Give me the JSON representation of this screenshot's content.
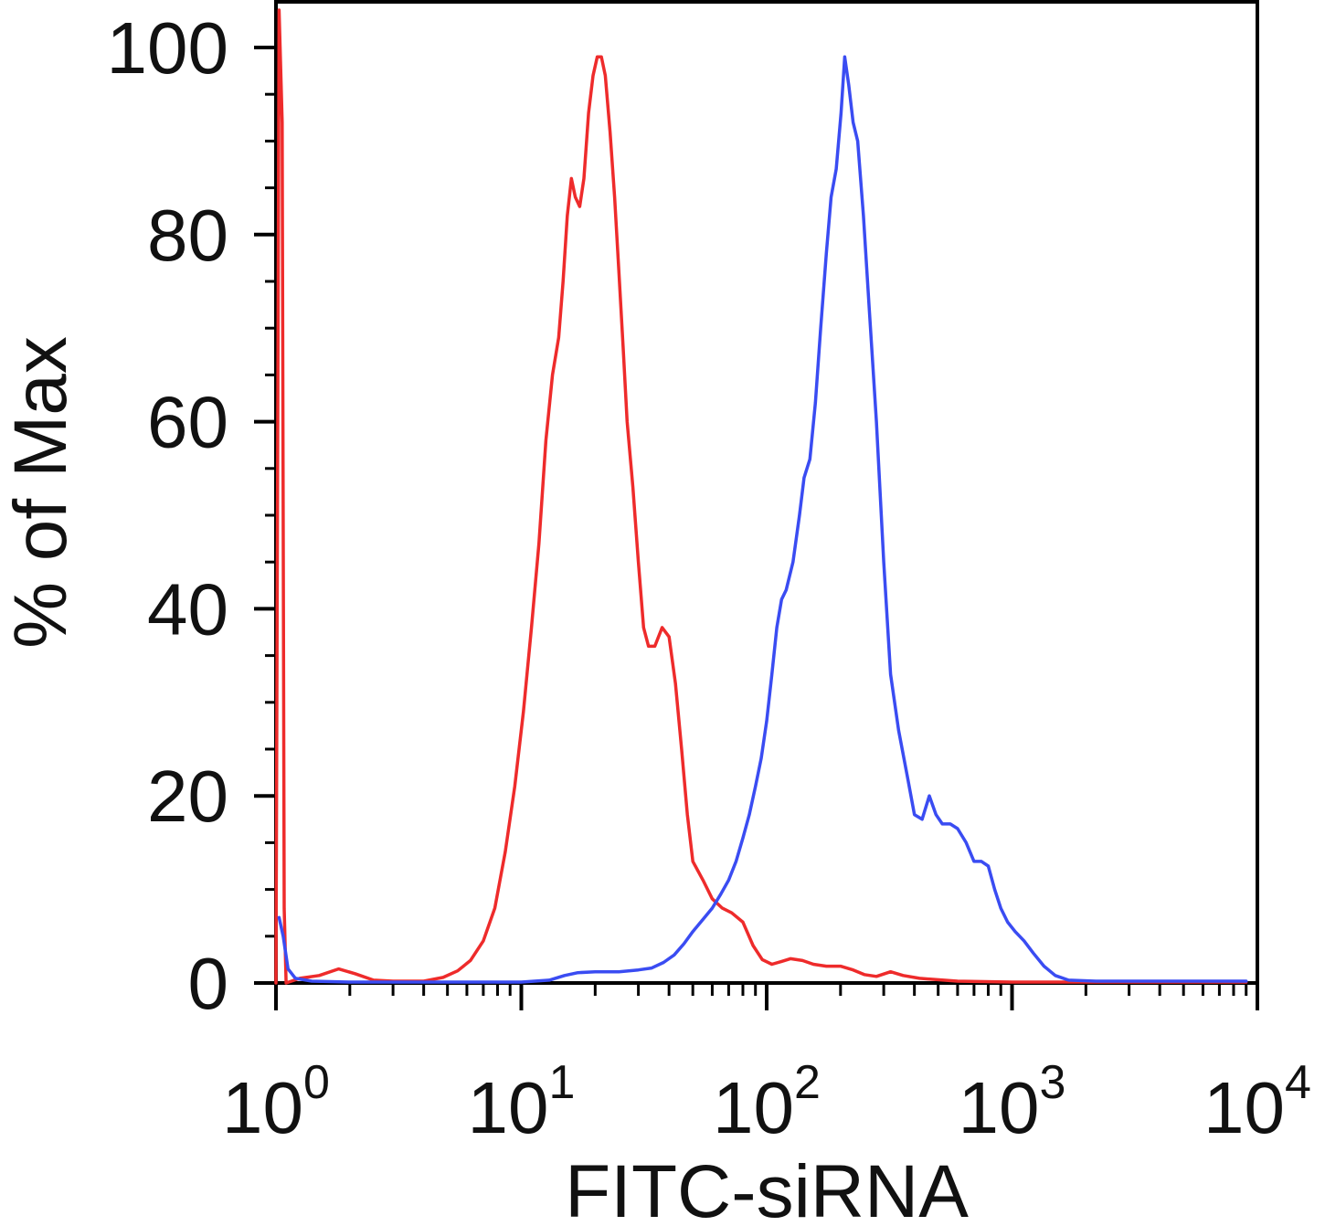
{
  "chart_data": {
    "type": "line",
    "title": "",
    "xlabel": "FITC-siRNA",
    "ylabel": "% of Max",
    "xscale": "log",
    "xlim": [
      1,
      10000
    ],
    "ylim": [
      0,
      100
    ],
    "grid": false,
    "legend": "none",
    "x_ticks": [
      {
        "value": 1,
        "base": "10",
        "exp": "0"
      },
      {
        "value": 10,
        "base": "10",
        "exp": "1"
      },
      {
        "value": 100,
        "base": "10",
        "exp": "2"
      },
      {
        "value": 1000,
        "base": "10",
        "exp": "3"
      },
      {
        "value": 10000,
        "base": "10",
        "exp": "4"
      }
    ],
    "y_ticks": [
      0,
      20,
      40,
      60,
      80,
      100
    ],
    "series": [
      {
        "color": "#ee2b2b",
        "points": [
          [
            1.0,
            0
          ],
          [
            1.03,
            104
          ],
          [
            1.06,
            92
          ],
          [
            1.08,
            8
          ],
          [
            1.1,
            0
          ],
          [
            1.25,
            0.5
          ],
          [
            1.5,
            0.8
          ],
          [
            1.8,
            1.5
          ],
          [
            2.1,
            1.0
          ],
          [
            2.5,
            0.3
          ],
          [
            3.0,
            0.2
          ],
          [
            4.0,
            0.2
          ],
          [
            4.8,
            0.6
          ],
          [
            5.5,
            1.3
          ],
          [
            6.2,
            2.4
          ],
          [
            7.0,
            4.5
          ],
          [
            7.8,
            8
          ],
          [
            8.6,
            14
          ],
          [
            9.4,
            21
          ],
          [
            10.2,
            29
          ],
          [
            11.0,
            38
          ],
          [
            11.8,
            47
          ],
          [
            12.6,
            58
          ],
          [
            13.4,
            65
          ],
          [
            14.2,
            69
          ],
          [
            14.8,
            75
          ],
          [
            15.4,
            82
          ],
          [
            16.0,
            86
          ],
          [
            16.6,
            84
          ],
          [
            17.3,
            83
          ],
          [
            18.0,
            86
          ],
          [
            18.8,
            93
          ],
          [
            19.6,
            97
          ],
          [
            20.4,
            99
          ],
          [
            21.2,
            99
          ],
          [
            22.0,
            97
          ],
          [
            23.0,
            91
          ],
          [
            24.0,
            84
          ],
          [
            25.0,
            76
          ],
          [
            26.0,
            68
          ],
          [
            27.0,
            60
          ],
          [
            28.5,
            53
          ],
          [
            30.0,
            45
          ],
          [
            31.5,
            38
          ],
          [
            33.0,
            36
          ],
          [
            35.0,
            36
          ],
          [
            37.5,
            38
          ],
          [
            40.0,
            37
          ],
          [
            42.5,
            32
          ],
          [
            45.0,
            25
          ],
          [
            47.5,
            18
          ],
          [
            50.0,
            13
          ],
          [
            55.0,
            11
          ],
          [
            60.0,
            9
          ],
          [
            66.0,
            8
          ],
          [
            72.0,
            7.5
          ],
          [
            80.0,
            6.5
          ],
          [
            88.0,
            4
          ],
          [
            96.0,
            2.5
          ],
          [
            105.0,
            2.0
          ],
          [
            115.0,
            2.3
          ],
          [
            125.0,
            2.6
          ],
          [
            140.0,
            2.4
          ],
          [
            155.0,
            2.0
          ],
          [
            175.0,
            1.8
          ],
          [
            200.0,
            1.8
          ],
          [
            225.0,
            1.4
          ],
          [
            250.0,
            0.9
          ],
          [
            280.0,
            0.7
          ],
          [
            320.0,
            1.2
          ],
          [
            360.0,
            0.8
          ],
          [
            420.0,
            0.5
          ],
          [
            600.0,
            0.2
          ],
          [
            1000.0,
            0.1
          ],
          [
            2000.0,
            0.1
          ],
          [
            9000.0,
            0.1
          ]
        ]
      },
      {
        "color": "#3a4cf2",
        "points": [
          [
            1.03,
            7
          ],
          [
            1.07,
            5
          ],
          [
            1.12,
            1.5
          ],
          [
            1.2,
            0.5
          ],
          [
            1.4,
            0.2
          ],
          [
            2.0,
            0.1
          ],
          [
            5.0,
            0.1
          ],
          [
            10.0,
            0.1
          ],
          [
            13.0,
            0.3
          ],
          [
            15.0,
            0.8
          ],
          [
            17.0,
            1.1
          ],
          [
            20.0,
            1.2
          ],
          [
            25.0,
            1.2
          ],
          [
            30.0,
            1.4
          ],
          [
            34.0,
            1.6
          ],
          [
            38.0,
            2.2
          ],
          [
            42.0,
            3.0
          ],
          [
            46.0,
            4.2
          ],
          [
            50.0,
            5.5
          ],
          [
            55.0,
            6.8
          ],
          [
            60.0,
            8.0
          ],
          [
            65.0,
            9.5
          ],
          [
            70.0,
            11
          ],
          [
            75.0,
            13
          ],
          [
            80.0,
            15.5
          ],
          [
            85.0,
            18
          ],
          [
            90.0,
            21
          ],
          [
            95.0,
            24
          ],
          [
            100.0,
            28
          ],
          [
            105.0,
            33
          ],
          [
            110.0,
            38
          ],
          [
            115.0,
            41
          ],
          [
            120.0,
            42
          ],
          [
            128.0,
            45
          ],
          [
            136.0,
            50
          ],
          [
            142.0,
            54
          ],
          [
            150.0,
            56
          ],
          [
            158.0,
            62
          ],
          [
            166.0,
            70
          ],
          [
            175.0,
            78
          ],
          [
            183.0,
            84
          ],
          [
            192.0,
            87
          ],
          [
            201.0,
            93
          ],
          [
            208.0,
            99
          ],
          [
            216.0,
            96
          ],
          [
            225.0,
            92
          ],
          [
            235.0,
            90
          ],
          [
            248.0,
            82
          ],
          [
            262.0,
            72
          ],
          [
            280.0,
            60
          ],
          [
            300.0,
            45
          ],
          [
            320.0,
            33
          ],
          [
            345.0,
            27
          ],
          [
            375.0,
            22
          ],
          [
            400.0,
            18
          ],
          [
            430.0,
            17.5
          ],
          [
            460.0,
            20
          ],
          [
            490.0,
            18
          ],
          [
            520.0,
            17
          ],
          [
            560.0,
            17
          ],
          [
            600.0,
            16.5
          ],
          [
            650.0,
            15
          ],
          [
            700.0,
            13
          ],
          [
            750.0,
            13
          ],
          [
            800.0,
            12.5
          ],
          [
            850.0,
            10
          ],
          [
            900.0,
            8
          ],
          [
            960.0,
            6.5
          ],
          [
            1030.0,
            5.5
          ],
          [
            1120.0,
            4.5
          ],
          [
            1220.0,
            3.2
          ],
          [
            1350.0,
            1.8
          ],
          [
            1500.0,
            0.8
          ],
          [
            1700.0,
            0.3
          ],
          [
            2200.0,
            0.2
          ],
          [
            4000.0,
            0.2
          ],
          [
            9000.0,
            0.2
          ]
        ]
      }
    ]
  }
}
